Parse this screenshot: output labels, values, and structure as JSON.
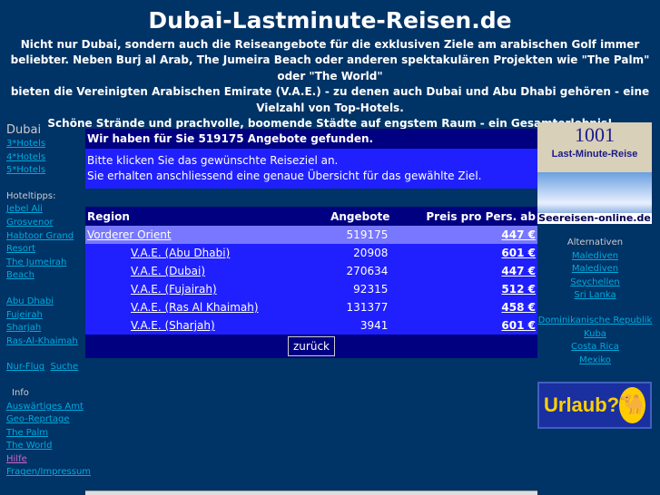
{
  "title": "Dubai-Lastminute-Reisen.de",
  "intro": [
    "Nicht nur Dubai, sondern auch die Reiseangebote für die exklusiven Ziele am arabischen Golf immer",
    "beliebter. Neben Burj al Arab, The Jumeira Beach oder anderen spektakulären Projekten wie \"The Palm\" oder \"The World\"",
    "bieten die  Vereinigten Arabischen Emirate (V.A.E.) - zu denen auch Dubai und Abu Dhabi gehören - eine Vielzahl von Top-Hotels.",
    "Schöne Strände und prachvolle, boomende Städte auf engstem Raum - ein Gesamterlebnis!"
  ],
  "left": {
    "heading": "Dubai",
    "hotels": [
      "3*Hotels",
      "4*Hotels",
      "5*Hotels"
    ],
    "tips_label": "Hoteltipps:",
    "tips": [
      "Jebel Ali",
      "Grosvenor",
      "Habtoor Grand Resort",
      "The Jumeirah Beach"
    ],
    "cities": [
      "Abu Dhabi",
      "Fujeirah",
      "Sharjah",
      "Ras-Al-Khaimah"
    ],
    "flight": "Nur-Flug",
    "search": "Suche",
    "info_label": "Info",
    "info": [
      "Auswärtiges Amt",
      "Geo-Reprtage",
      "The Palm",
      "The World",
      "Hilfe",
      "Fragen/Impressum"
    ]
  },
  "main": {
    "found": "Wir haben für Sie 519175 Angebote gefunden.",
    "hint1": "Bitte klicken Sie das gewünschte Reiseziel an.",
    "hint2": "Sie erhalten anschliessend eine genaue Übersicht für das gewählte Ziel.",
    "columns": [
      "Region",
      "Angebote",
      "Preis pro Pers. ab"
    ],
    "rows": [
      {
        "region": "Vorderer Orient",
        "offers": "519175",
        "price": "447 €"
      },
      {
        "region": "V.A.E. (Abu Dhabi)",
        "offers": "20908",
        "price": "601 €"
      },
      {
        "region": "V.A.E. (Dubai)",
        "offers": "270634",
        "price": "447 €"
      },
      {
        "region": "V.A.E. (Fujairah)",
        "offers": "92315",
        "price": "512 €"
      },
      {
        "region": "V.A.E. (Ras Al Khaimah)",
        "offers": "131377",
        "price": "458 €"
      },
      {
        "region": "V.A.E. (Sharjah)",
        "offers": "3941",
        "price": "601 €"
      }
    ],
    "back": "zurück"
  },
  "right": {
    "ad1_number": "1001",
    "ad1_text": "Last-Minute-Reise",
    "ad2_text": "Seereisen-online.de",
    "alt_label": "Alternativen",
    "alt": [
      "Malediven",
      "Malediven",
      "Seychellen",
      "Sri Lanka"
    ],
    "alt2": [
      "Dominikanische Republik",
      "Kuba",
      "Costa Rica",
      "Mexiko"
    ],
    "banner": "Urlaub?"
  }
}
